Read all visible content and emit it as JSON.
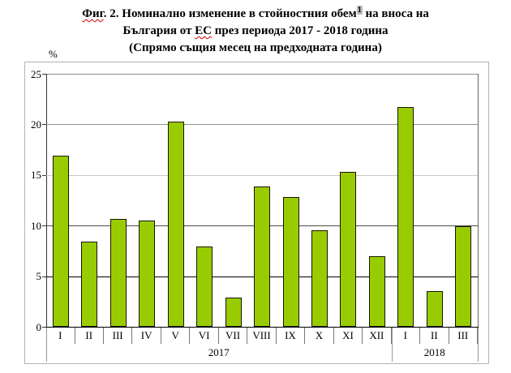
{
  "figure": {
    "title_line1_word1": "Фиг",
    "title_line1_rest": ". 2. Номинално изменение в стойностния обем",
    "footnote_marker": "1",
    "title_line1_tail": " на вноса на",
    "title_line2_pre": "България от ",
    "title_line2_ec": "ЕС",
    "title_line2_tail": " през периода 2017 - 2018 година",
    "title_line3": "(Спрямо същия месец на предходната година)"
  },
  "chart_data": {
    "type": "bar",
    "title": "Номинално изменение в стойностния обем на вноса на България от ЕС през периода 2017 - 2018 година (Спрямо същия месец на предходната година)",
    "ylabel": "%",
    "xlabel": "",
    "ylim": [
      0,
      25
    ],
    "yticks": [
      0,
      5,
      10,
      15,
      20,
      25
    ],
    "grid": true,
    "legend_position": "none",
    "categories": [
      "I",
      "II",
      "III",
      "IV",
      "V",
      "VI",
      "VII",
      "VIII",
      "IX",
      "X",
      "XI",
      "XII",
      "I",
      "II",
      "III"
    ],
    "groups": [
      {
        "label": "2017",
        "span": 12
      },
      {
        "label": "2018",
        "span": 3
      }
    ],
    "values": [
      16.9,
      8.4,
      10.7,
      10.5,
      20.3,
      7.9,
      2.9,
      13.9,
      12.8,
      9.5,
      15.3,
      7.0,
      21.7,
      3.5,
      9.9
    ],
    "bar_color": "#99cc00",
    "bar_border_color": "#141400"
  }
}
